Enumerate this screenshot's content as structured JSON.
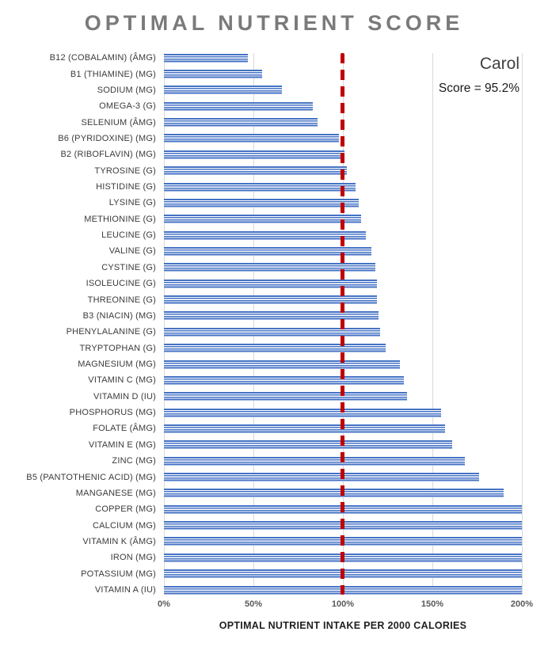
{
  "title": "OPTIMAL NUTRIENT SCORE",
  "legend": {
    "name": "Carol",
    "score": "Score = 95.2%"
  },
  "chart_data": {
    "type": "bar",
    "orientation": "horizontal",
    "title": "OPTIMAL NUTRIENT SCORE",
    "xlabel": "OPTIMAL NUTRIENT INTAKE PER 2000 CALORIES",
    "ylabel": "",
    "xlim": [
      0,
      200
    ],
    "x_ticks": [
      "0%",
      "50%",
      "100%",
      "150%",
      "200%"
    ],
    "grid": true,
    "bar_color": "#4472c4",
    "reference_line": {
      "value": 100,
      "color": "#c00000",
      "style": "dashed"
    },
    "categories": [
      "B12 (COBALAMIN) (ÂMG)",
      "B1 (THIAMINE) (MG)",
      "SODIUM (MG)",
      "OMEGA-3 (G)",
      "SELENIUM (ÂMG)",
      "B6 (PYRIDOXINE) (MG)",
      "B2 (RIBOFLAVIN) (MG)",
      "TYROSINE (G)",
      "HISTIDINE (G)",
      "LYSINE (G)",
      "METHIONINE (G)",
      "LEUCINE (G)",
      "VALINE (G)",
      "CYSTINE (G)",
      "ISOLEUCINE (G)",
      "THREONINE (G)",
      "B3 (NIACIN) (MG)",
      "PHENYLALANINE (G)",
      "TRYPTOPHAN (G)",
      "MAGNESIUM (MG)",
      "VITAMIN C (MG)",
      "VITAMIN D (IU)",
      "PHOSPHORUS (MG)",
      "FOLATE (ÂMG)",
      "VITAMIN E (MG)",
      "ZINC (MG)",
      "B5 (PANTOTHENIC ACID) (MG)",
      "MANGANESE (MG)",
      "COPPER (MG)",
      "CALCIUM (MG)",
      "VITAMIN K (ÂMG)",
      "IRON (MG)",
      "POTASSIUM (MG)",
      "VITAMIN A (IU)"
    ],
    "values": [
      47,
      55,
      66,
      83,
      86,
      98,
      101,
      102,
      107,
      109,
      110,
      113,
      116,
      118,
      119,
      119,
      120,
      121,
      124,
      132,
      134,
      136,
      155,
      157,
      161,
      168,
      176,
      190,
      200,
      200,
      200,
      200,
      200,
      200
    ]
  }
}
